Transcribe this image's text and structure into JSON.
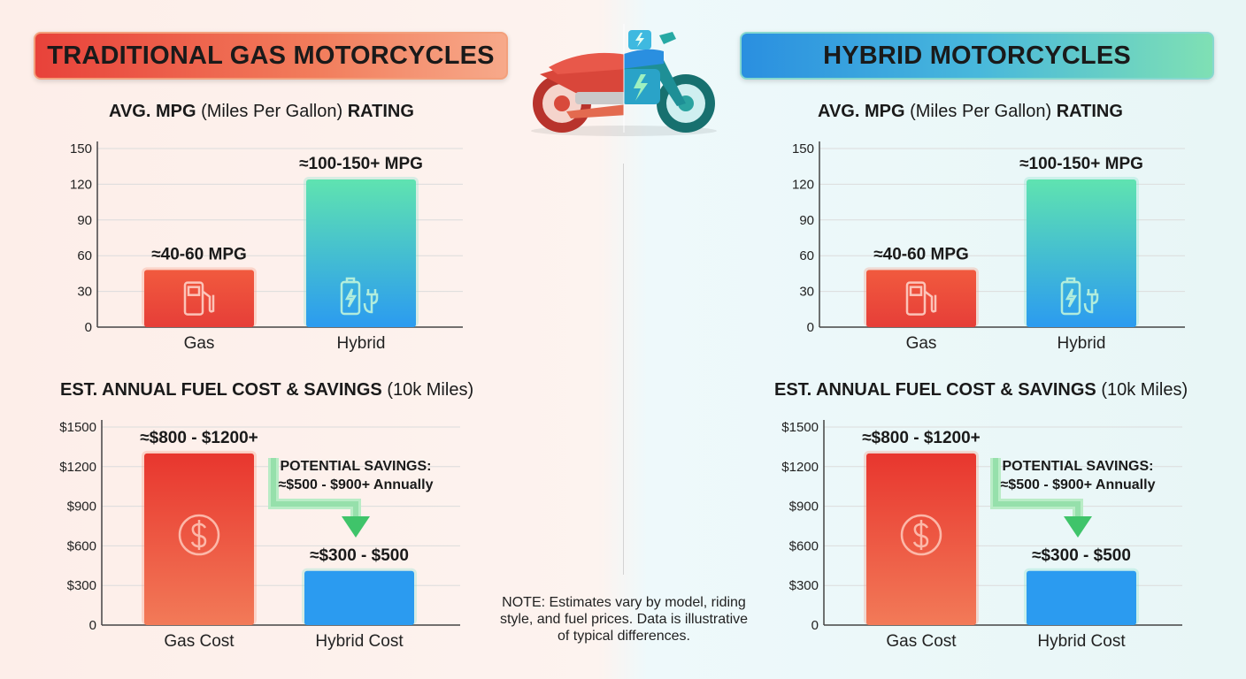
{
  "colors": {
    "gas_top": "#f15a3e",
    "gas_bottom": "#e63e38",
    "cost_top": "#e8362e",
    "cost_bottom": "#f27a58",
    "hybrid_top": "#5fe3b0",
    "hybrid_bottom": "#2b9bf0",
    "savings_green": "#3fc46a"
  },
  "panels": [
    {
      "side": "left",
      "banner": "TRADITIONAL GAS MOTORCYCLES",
      "mpg_title_bold_1": "AVG. MPG",
      "mpg_title_normal": "(Miles Per Gallon)",
      "mpg_title_bold_2": "RATING",
      "cost_title_bold": "EST. ANNUAL FUEL COST & SAVINGS",
      "cost_title_normal": "(10k Miles)"
    },
    {
      "side": "right",
      "banner": "HYBRID MOTORCYCLES",
      "mpg_title_bold_1": "AVG. MPG",
      "mpg_title_normal": "(Miles Per Gallon)",
      "mpg_title_bold_2": "RATING",
      "cost_title_bold": "EST. ANNUAL FUEL COST & SAVINGS",
      "cost_title_normal": "(10k Miles)"
    }
  ],
  "chart_data": [
    {
      "type": "bar",
      "title": "AVG. MPG (Miles Per Gallon) RATING",
      "categories": [
        "Gas",
        "Hybrid"
      ],
      "values": [
        48,
        124
      ],
      "data_labels": [
        "≈40-60 MPG",
        "≈100-150+ MPG"
      ],
      "icons": [
        "fuel-pump-icon",
        "battery-plug-icon"
      ],
      "yticks": [
        "0",
        "30",
        "60",
        "90",
        "120",
        "150"
      ],
      "ylim": [
        0,
        150
      ],
      "grid": true
    },
    {
      "type": "bar",
      "title": "EST. ANNUAL FUEL COST & SAVINGS (10k Miles)",
      "categories": [
        "Gas Cost",
        "Hybrid Cost"
      ],
      "values": [
        1300,
        410
      ],
      "data_labels": [
        "≈$800 - $1200+",
        "≈$300 - $500"
      ],
      "icons": [
        "dollar-icon",
        ""
      ],
      "yticks": [
        "0",
        "$300",
        "$600",
        "$900",
        "$1200",
        "$1500"
      ],
      "ylim": [
        0,
        1500
      ],
      "grid": true,
      "annotation": {
        "line1": "POTENTIAL SAVINGS:",
        "line2": "≈$500 - $900+ Annually"
      }
    }
  ],
  "note": "NOTE: Estimates vary by model, riding style, and fuel prices. Data is illustrative of typical differences."
}
